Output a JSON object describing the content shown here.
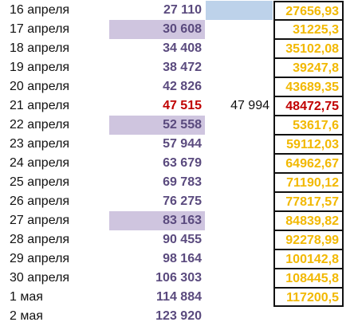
{
  "rows": [
    {
      "date": "16 апреля",
      "value": "27 110",
      "mid": "",
      "pred": "27656,93"
    },
    {
      "date": "17 апреля",
      "value": "30 608",
      "mid": "",
      "pred": "31225,3"
    },
    {
      "date": "18 апреля",
      "value": "34 408",
      "mid": "",
      "pred": "35102,08"
    },
    {
      "date": "19 апреля",
      "value": "38 472",
      "mid": "",
      "pred": "39247,8"
    },
    {
      "date": "20 апреля",
      "value": "42 826",
      "mid": "",
      "pred": "43689,35"
    },
    {
      "date": "21 апреля",
      "value": "47 515",
      "mid": "47 994",
      "pred": "48472,75"
    },
    {
      "date": "22 апреля",
      "value": "52 558",
      "mid": "",
      "pred": "53617,6"
    },
    {
      "date": "23 апреля",
      "value": "57 944",
      "mid": "",
      "pred": "59112,03"
    },
    {
      "date": "24 апреля",
      "value": "63 679",
      "mid": "",
      "pred": "64962,67"
    },
    {
      "date": "25 апреля",
      "value": "69 783",
      "mid": "",
      "pred": "71190,12"
    },
    {
      "date": "26 апреля",
      "value": "76 275",
      "mid": "",
      "pred": "77817,57"
    },
    {
      "date": "27 апреля",
      "value": "83 163",
      "mid": "",
      "pred": "84839,82"
    },
    {
      "date": "28 апреля",
      "value": "90 455",
      "mid": "",
      "pred": "92278,99"
    },
    {
      "date": "29 апреля",
      "value": "98 164",
      "mid": "",
      "pred": "100142,8"
    },
    {
      "date": "30 апреля",
      "value": "106 303",
      "mid": "",
      "pred": "108445,8"
    },
    {
      "date": "1 мая",
      "value": "114 884",
      "mid": "",
      "pred": "117200,5"
    },
    {
      "date": "2 мая",
      "value": "123 920",
      "mid": "",
      "pred": ""
    }
  ],
  "colors": {
    "value_text": "#5a4a7e",
    "highlight_red": "#c00000",
    "pred_text": "#f2b800",
    "value_highlight_bg": "#cfc5df",
    "mid_highlight_bg": "#bdd2ea"
  }
}
